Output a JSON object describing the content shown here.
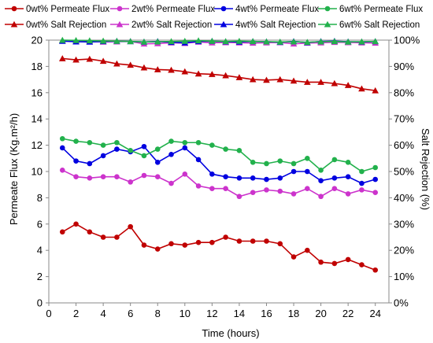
{
  "chart_data": {
    "type": "line",
    "xlabel": "Time (hours)",
    "ylabel_left": "Permeate Flux (Kg.m²/h)",
    "ylabel_right": "Salt Rejection (%)",
    "xlim": [
      0,
      25
    ],
    "ylim_left": [
      0,
      20
    ],
    "ylim_right": [
      0,
      100
    ],
    "x_ticks": [
      0,
      2,
      4,
      6,
      8,
      10,
      12,
      14,
      16,
      18,
      20,
      22,
      24
    ],
    "y_left_ticks": [
      0,
      2,
      4,
      6,
      8,
      10,
      12,
      14,
      16,
      18,
      20
    ],
    "y_right_ticks": [
      "0%",
      "10%",
      "20%",
      "30%",
      "40%",
      "50%",
      "60%",
      "70%",
      "80%",
      "90%",
      "100%"
    ],
    "grid": false,
    "legend_placement": "top",
    "x": [
      1,
      2,
      3,
      4,
      5,
      6,
      7,
      8,
      9,
      10,
      11,
      12,
      13,
      14,
      15,
      16,
      17,
      18,
      19,
      20,
      21,
      22,
      23,
      24
    ],
    "series": [
      {
        "name": "0wt% Permeate Flux",
        "axis": "left",
        "marker": "circle",
        "color": "#c00000",
        "values": [
          5.4,
          6.0,
          5.4,
          5.0,
          5.0,
          5.8,
          4.4,
          4.1,
          4.5,
          4.4,
          4.6,
          4.6,
          5.0,
          4.7,
          4.7,
          4.7,
          4.5,
          3.5,
          4.0,
          3.1,
          3.0,
          3.3,
          2.9,
          2.5
        ]
      },
      {
        "name": "2wt% Permeate Flux",
        "axis": "left",
        "marker": "circle",
        "color": "#cc33cc",
        "values": [
          10.1,
          9.6,
          9.5,
          9.6,
          9.6,
          9.2,
          9.7,
          9.6,
          9.1,
          9.8,
          8.9,
          8.7,
          8.7,
          8.1,
          8.4,
          8.6,
          8.5,
          8.3,
          8.7,
          8.1,
          8.7,
          8.3,
          8.6,
          8.4
        ]
      },
      {
        "name": "4wt% Permeate Flux",
        "axis": "left",
        "marker": "circle",
        "color": "#0000e0",
        "values": [
          11.8,
          10.8,
          10.6,
          11.2,
          11.7,
          11.5,
          11.9,
          10.7,
          11.3,
          11.8,
          10.9,
          9.8,
          9.6,
          9.5,
          9.5,
          9.4,
          9.5,
          10.0,
          10.0,
          9.3,
          9.5,
          9.6,
          9.1,
          9.4
        ]
      },
      {
        "name": "6wt% Permeate Flux",
        "axis": "left",
        "marker": "circle",
        "color": "#22b14c",
        "values": [
          12.5,
          12.3,
          12.2,
          12.0,
          12.2,
          11.6,
          11.2,
          11.7,
          12.3,
          12.2,
          12.2,
          12.0,
          11.7,
          11.6,
          10.7,
          10.6,
          10.8,
          10.6,
          11.0,
          10.1,
          10.9,
          10.7,
          10.0,
          10.3
        ]
      },
      {
        "name": "0wt% Salt Rejection",
        "axis": "right",
        "marker": "triangle",
        "color": "#c00000",
        "values": [
          93.0,
          92.5,
          92.8,
          92.0,
          91.0,
          90.5,
          89.5,
          88.8,
          88.6,
          88.0,
          87.2,
          87.0,
          86.5,
          85.8,
          85.0,
          84.8,
          85.0,
          84.5,
          84.0,
          84.0,
          83.5,
          82.8,
          81.5,
          80.8
        ]
      },
      {
        "name": "2wt% Salt Rejection",
        "axis": "right",
        "marker": "triangle",
        "color": "#cc33cc",
        "values": [
          99.8,
          99.7,
          99.5,
          99.3,
          99.4,
          99.5,
          98.6,
          98.7,
          99.0,
          98.8,
          99.3,
          99.0,
          99.1,
          99.0,
          98.9,
          99.0,
          99.1,
          98.6,
          98.9,
          99.0,
          99.2,
          99.1,
          99.0,
          98.9
        ]
      },
      {
        "name": "4wt% Salt Rejection",
        "axis": "right",
        "marker": "triangle",
        "color": "#0000e0",
        "values": [
          99.6,
          99.4,
          99.3,
          99.5,
          99.6,
          99.5,
          99.3,
          99.5,
          99.2,
          99.0,
          99.5,
          99.6,
          99.4,
          99.3,
          99.5,
          99.4,
          99.2,
          99.5,
          99.1,
          99.5,
          99.6,
          99.4,
          99.3,
          99.5
        ]
      },
      {
        "name": "6wt% Salt Rejection",
        "axis": "right",
        "marker": "triangle",
        "color": "#22b14c",
        "values": [
          100.0,
          99.9,
          99.8,
          99.7,
          99.6,
          99.5,
          99.3,
          99.4,
          99.5,
          99.6,
          99.8,
          99.6,
          99.5,
          99.6,
          99.5,
          99.4,
          99.3,
          99.4,
          99.2,
          99.4,
          99.5,
          99.3,
          99.4,
          99.5
        ]
      }
    ]
  }
}
